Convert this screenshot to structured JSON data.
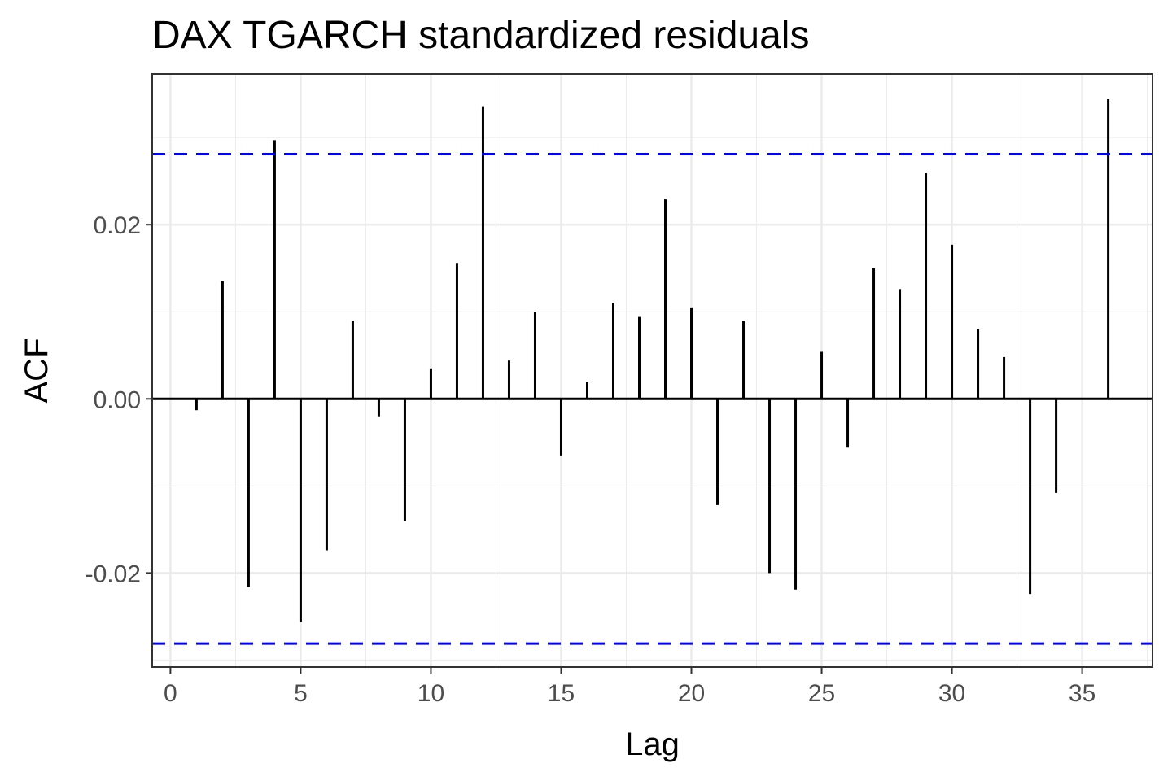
{
  "chart_data": {
    "type": "bar",
    "title": "DAX TGARCH standardized residuals",
    "xlabel": "Lag",
    "ylabel": "ACF",
    "xlim": [
      -0.7,
      37.7
    ],
    "ylim": [
      -0.0308,
      0.0373
    ],
    "x_ticks": [
      0,
      5,
      10,
      15,
      20,
      25,
      30,
      35
    ],
    "y_ticks": [
      -0.02,
      0.0,
      0.02
    ],
    "y_tick_labels": [
      "-0.02",
      "0.00",
      "0.02"
    ],
    "grid": true,
    "confidence_bound": 0.0281,
    "colors": {
      "bars": "#000000",
      "bounds": "#0000ff",
      "grid": "#ebebeb",
      "zero_line": "#000000"
    },
    "lags": [
      1,
      2,
      3,
      4,
      5,
      6,
      7,
      8,
      9,
      10,
      11,
      12,
      13,
      14,
      15,
      16,
      17,
      18,
      19,
      20,
      21,
      22,
      23,
      24,
      25,
      26,
      27,
      28,
      29,
      30,
      31,
      32,
      33,
      34,
      35,
      36
    ],
    "acf": [
      -0.0013,
      0.0135,
      -0.0216,
      0.0297,
      -0.0256,
      -0.0174,
      0.009,
      -0.002,
      -0.014,
      0.0035,
      0.0156,
      0.0336,
      0.0044,
      0.01,
      -0.0065,
      0.0019,
      0.011,
      0.0094,
      0.0229,
      0.0105,
      -0.0122,
      0.0089,
      -0.02,
      -0.0219,
      0.0054,
      -0.0056,
      0.015,
      0.0126,
      0.0259,
      0.0177,
      0.008,
      0.0048,
      -0.0224,
      -0.0108,
      0.0,
      0.0344
    ]
  }
}
